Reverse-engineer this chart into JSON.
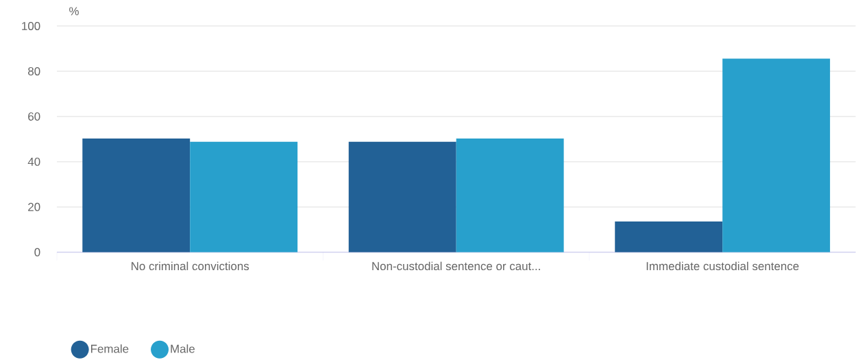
{
  "chart_data": {
    "type": "bar",
    "ylabel": "%",
    "categories": [
      "No criminal convictions",
      "Non-custodial sentence or caut...",
      "Immediate custodial sentence"
    ],
    "series": [
      {
        "name": "Female",
        "color": "#226196",
        "values": [
          50.3,
          48.8,
          13.6
        ]
      },
      {
        "name": "Male",
        "color": "#28a0cc",
        "values": [
          48.8,
          50.3,
          85.6
        ]
      }
    ],
    "ylim": [
      0,
      100
    ],
    "yticks": [
      0,
      20,
      40,
      60,
      80,
      100
    ],
    "grid": "y",
    "legend": "bottom left"
  }
}
